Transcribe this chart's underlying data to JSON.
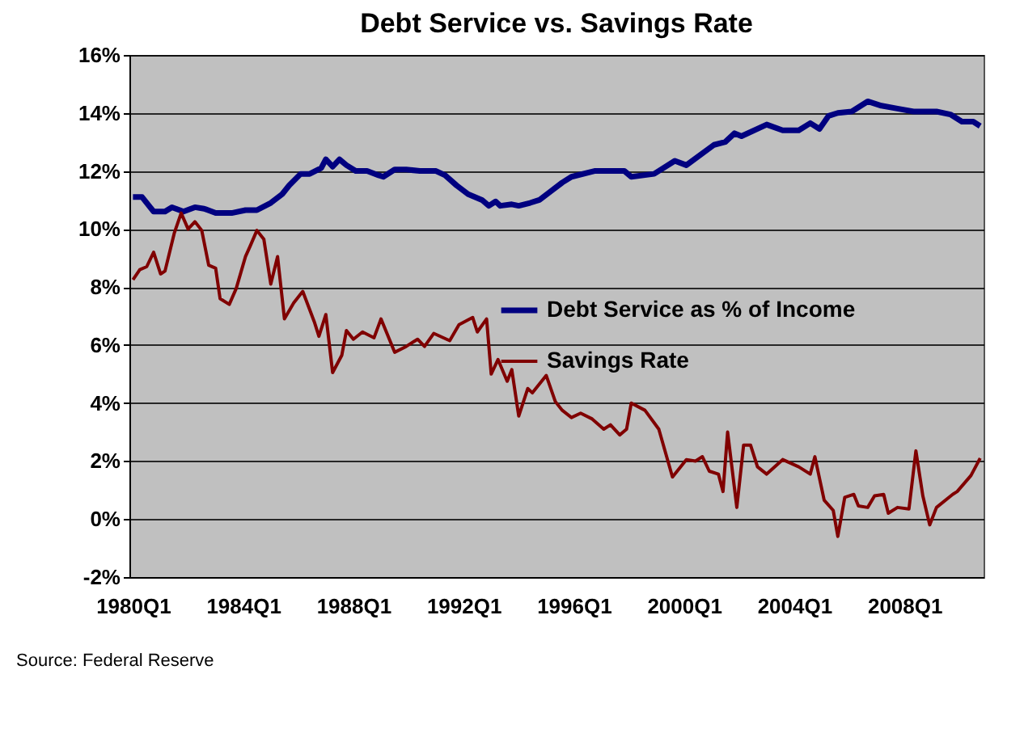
{
  "chart_data": {
    "type": "line",
    "title": "Debt Service vs. Savings Rate",
    "annotations": [
      "Source: Federal Reserve"
    ],
    "xlim": [
      "1979-11-15",
      "2010-11-15"
    ],
    "xticks": [
      {
        "value": "1980-01",
        "label": "1980Q1"
      },
      {
        "value": "1984-01",
        "label": "1984Q1"
      },
      {
        "value": "1988-01",
        "label": "1988Q1"
      },
      {
        "value": "1992-01",
        "label": "1992Q1"
      },
      {
        "value": "1996-01",
        "label": "1996Q1"
      },
      {
        "value": "2000-01",
        "label": "2000Q1"
      },
      {
        "value": "2004-01",
        "label": "2004Q1"
      },
      {
        "value": "2008-01",
        "label": "2008Q1"
      }
    ],
    "ylim": [
      -2,
      16
    ],
    "yticks": [
      {
        "value": -2,
        "label": "-2%"
      },
      {
        "value": 0,
        "label": "0%"
      },
      {
        "value": 2,
        "label": "2%"
      },
      {
        "value": 4,
        "label": "4%"
      },
      {
        "value": 6,
        "label": "6%"
      },
      {
        "value": 8,
        "label": "8%"
      },
      {
        "value": 10,
        "label": "10%"
      },
      {
        "value": 12,
        "label": "12%"
      },
      {
        "value": 14,
        "label": "14%"
      },
      {
        "value": 16,
        "label": "16%"
      }
    ],
    "grid": "y",
    "legend": "right",
    "marker": "none",
    "line_style": "solid",
    "series": [
      {
        "name": "Debt Service as % of Income",
        "color": "#000080",
        "x": [
          "1980-01",
          "1980-05",
          "1980-10",
          "1981-03",
          "1981-06",
          "1981-11",
          "1982-04",
          "1982-08",
          "1983-01",
          "1983-08",
          "1984-02",
          "1984-07",
          "1985-01",
          "1985-06",
          "1985-09",
          "1986-02",
          "1986-06",
          "1986-11",
          "1987-01",
          "1987-04",
          "1987-07",
          "1987-10",
          "1988-02",
          "1988-07",
          "1988-12",
          "1989-02",
          "1989-07",
          "1989-12",
          "1990-06",
          "1991-01",
          "1991-05",
          "1991-10",
          "1992-03",
          "1992-09",
          "1992-12",
          "1993-03",
          "1993-05",
          "1993-10",
          "1994-01",
          "1994-06",
          "1994-10",
          "1995-03",
          "1995-08",
          "1995-12",
          "1996-10",
          "1997-11",
          "1998-02",
          "1998-12",
          "1999-09",
          "2000-02",
          "2001-02",
          "2001-07",
          "2001-11",
          "2002-02",
          "2003-01",
          "2003-08",
          "2004-03",
          "2004-08",
          "2004-12",
          "2005-04",
          "2005-08",
          "2006-02",
          "2006-09",
          "2007-03",
          "2007-10",
          "2008-05",
          "2009-03",
          "2009-09",
          "2010-02",
          "2010-07",
          "2010-10"
        ],
        "values": [
          11.1,
          11.1,
          10.6,
          10.6,
          10.75,
          10.6,
          10.75,
          10.7,
          10.55,
          10.55,
          10.65,
          10.65,
          10.9,
          11.2,
          11.5,
          11.9,
          11.9,
          12.1,
          12.4,
          12.15,
          12.4,
          12.2,
          12.0,
          12.0,
          11.85,
          11.8,
          12.05,
          12.05,
          12.0,
          12.0,
          11.85,
          11.5,
          11.2,
          11.0,
          10.8,
          10.95,
          10.8,
          10.85,
          10.8,
          10.9,
          11.0,
          11.3,
          11.6,
          11.8,
          12.0,
          12.0,
          11.8,
          11.9,
          12.35,
          12.2,
          12.9,
          13.0,
          13.3,
          13.2,
          13.6,
          13.4,
          13.4,
          13.65,
          13.45,
          13.9,
          14.0,
          14.05,
          14.4,
          14.25,
          14.15,
          14.05,
          14.05,
          13.95,
          13.7,
          13.7,
          13.55
        ]
      },
      {
        "name": "Savings Rate",
        "color": "#800000",
        "x": [
          "1980-01",
          "1980-04",
          "1980-07",
          "1980-10",
          "1981-01",
          "1981-03",
          "1981-07",
          "1981-10",
          "1982-01",
          "1982-04",
          "1982-07",
          "1982-10",
          "1983-01",
          "1983-03",
          "1983-07",
          "1983-10",
          "1984-02",
          "1984-04",
          "1984-07",
          "1984-10",
          "1985-01",
          "1985-04",
          "1985-07",
          "1985-11",
          "1986-03",
          "1986-08",
          "1986-10",
          "1987-01",
          "1987-04",
          "1987-08",
          "1987-10",
          "1988-01",
          "1988-05",
          "1988-10",
          "1989-01",
          "1989-07",
          "1989-12",
          "1990-05",
          "1990-08",
          "1990-12",
          "1991-07",
          "1991-11",
          "1992-05",
          "1992-07",
          "1992-11",
          "1993-01",
          "1993-04",
          "1993-08",
          "1993-10",
          "1994-01",
          "1994-05",
          "1994-07",
          "1995-01",
          "1995-05",
          "1995-08",
          "1995-12",
          "1996-04",
          "1996-09",
          "1997-02",
          "1997-05",
          "1997-09",
          "1997-12",
          "1998-02",
          "1998-08",
          "1999-02",
          "1999-08",
          "2000-02",
          "2000-06",
          "2000-09",
          "2000-12",
          "2001-04",
          "2001-06",
          "2001-08",
          "2001-12",
          "2002-03",
          "2002-06",
          "2002-09",
          "2003-01",
          "2003-08",
          "2004-03",
          "2004-08",
          "2004-10",
          "2005-02",
          "2005-06",
          "2005-08",
          "2005-11",
          "2006-03",
          "2006-05",
          "2006-09",
          "2006-12",
          "2007-04",
          "2007-06",
          "2007-10",
          "2008-03",
          "2008-06",
          "2008-09",
          "2008-12",
          "2009-03",
          "2009-10",
          "2009-12",
          "2010-06",
          "2010-10"
        ],
        "values": [
          8.25,
          8.6,
          8.7,
          9.2,
          8.45,
          8.55,
          9.85,
          10.55,
          10.0,
          10.25,
          9.95,
          8.75,
          8.65,
          7.6,
          7.4,
          7.95,
          9.05,
          9.4,
          9.95,
          9.65,
          8.1,
          9.05,
          6.9,
          7.45,
          7.85,
          6.8,
          6.3,
          7.05,
          5.05,
          5.65,
          6.5,
          6.2,
          6.45,
          6.25,
          6.9,
          5.75,
          5.95,
          6.2,
          5.95,
          6.4,
          6.15,
          6.7,
          6.95,
          6.45,
          6.9,
          5.0,
          5.5,
          4.75,
          5.15,
          3.55,
          4.5,
          4.35,
          4.95,
          4.05,
          3.75,
          3.5,
          3.65,
          3.45,
          3.1,
          3.25,
          2.9,
          3.1,
          4.0,
          3.75,
          3.1,
          1.45,
          2.05,
          2.0,
          2.15,
          1.65,
          1.55,
          0.95,
          3.0,
          0.4,
          2.55,
          2.55,
          1.8,
          1.55,
          2.05,
          1.8,
          1.55,
          2.15,
          0.65,
          0.3,
          -0.6,
          0.75,
          0.85,
          0.45,
          0.4,
          0.8,
          0.85,
          0.2,
          0.4,
          0.35,
          2.35,
          0.8,
          -0.2,
          0.4,
          0.85,
          0.95,
          1.5,
          2.1
        ]
      }
    ]
  }
}
